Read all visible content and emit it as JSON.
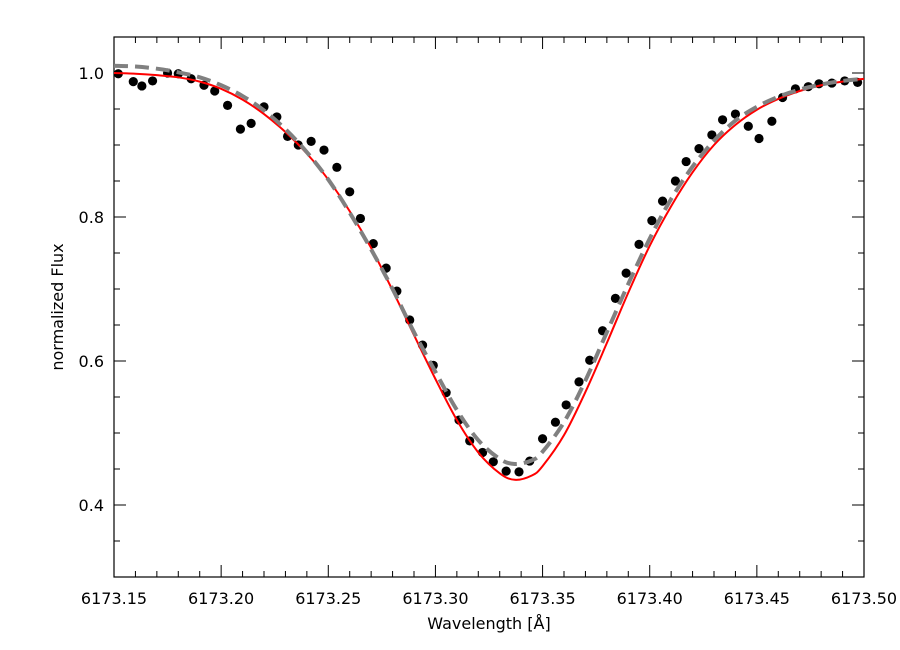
{
  "chart_data": {
    "type": "scatter",
    "title": "",
    "xlabel": "Wavelength [Å]",
    "ylabel": "normalized Flux",
    "xlim": [
      6173.15,
      6173.5
    ],
    "ylim": [
      0.3,
      1.05
    ],
    "xticks": [
      6173.15,
      6173.2,
      6173.25,
      6173.3,
      6173.35,
      6173.4,
      6173.45,
      6173.5
    ],
    "xtick_labels": [
      "6173.15",
      "6173.20",
      "6173.25",
      "6173.30",
      "6173.35",
      "6173.40",
      "6173.45",
      "6173.50"
    ],
    "yticks": [
      0.4,
      0.6,
      0.8,
      1.0
    ],
    "ytick_labels": [
      "0.4",
      "0.6",
      "0.8",
      "1.0"
    ],
    "grid": false,
    "legend": "none",
    "series": [
      {
        "kind": "scatter",
        "color": "#000000",
        "x": [
          6173.152,
          6173.159,
          6173.163,
          6173.168,
          6173.175,
          6173.18,
          6173.186,
          6173.192,
          6173.197,
          6173.203,
          6173.209,
          6173.214,
          6173.22,
          6173.226,
          6173.231,
          6173.236,
          6173.242,
          6173.248,
          6173.254,
          6173.26,
          6173.265,
          6173.271,
          6173.277,
          6173.282,
          6173.288,
          6173.294,
          6173.299,
          6173.305,
          6173.311,
          6173.316,
          6173.322,
          6173.327,
          6173.333,
          6173.339,
          6173.344,
          6173.35,
          6173.356,
          6173.361,
          6173.367,
          6173.372,
          6173.378,
          6173.384,
          6173.389,
          6173.395,
          6173.401,
          6173.406,
          6173.412,
          6173.417,
          6173.423,
          6173.429,
          6173.434,
          6173.44,
          6173.446,
          6173.451,
          6173.457,
          6173.462,
          6173.468,
          6173.474,
          6173.479,
          6173.485,
          6173.491,
          6173.497
        ],
        "y": [
          0.999,
          0.988,
          0.982,
          0.989,
          1.0,
          0.999,
          0.992,
          0.983,
          0.975,
          0.955,
          0.922,
          0.93,
          0.953,
          0.939,
          0.912,
          0.9,
          0.905,
          0.893,
          0.869,
          0.835,
          0.798,
          0.763,
          0.729,
          0.697,
          0.657,
          0.622,
          0.594,
          0.556,
          0.518,
          0.489,
          0.473,
          0.46,
          0.447,
          0.446,
          0.461,
          0.492,
          0.515,
          0.539,
          0.571,
          0.601,
          0.642,
          0.687,
          0.722,
          0.762,
          0.795,
          0.822,
          0.85,
          0.877,
          0.895,
          0.914,
          0.935,
          0.943,
          0.926,
          0.909,
          0.933,
          0.966,
          0.978,
          0.981,
          0.985,
          0.986,
          0.989,
          0.987
        ]
      },
      {
        "kind": "line",
        "color": "#ff0000",
        "style": "solid",
        "x": [
          6173.15,
          6173.16,
          6173.17,
          6173.18,
          6173.19,
          6173.2,
          6173.21,
          6173.22,
          6173.23,
          6173.24,
          6173.25,
          6173.26,
          6173.27,
          6173.28,
          6173.29,
          6173.3,
          6173.31,
          6173.32,
          6173.33,
          6173.337,
          6173.345,
          6173.35,
          6173.36,
          6173.37,
          6173.38,
          6173.39,
          6173.4,
          6173.41,
          6173.42,
          6173.43,
          6173.44,
          6173.45,
          6173.46,
          6173.47,
          6173.48,
          6173.49,
          6173.5
        ],
        "y": [
          1.0,
          0.999,
          0.997,
          0.994,
          0.988,
          0.978,
          0.963,
          0.943,
          0.918,
          0.888,
          0.852,
          0.808,
          0.757,
          0.698,
          0.636,
          0.575,
          0.518,
          0.473,
          0.444,
          0.435,
          0.441,
          0.454,
          0.497,
          0.557,
          0.625,
          0.695,
          0.76,
          0.815,
          0.862,
          0.9,
          0.928,
          0.949,
          0.964,
          0.975,
          0.983,
          0.988,
          0.992
        ]
      },
      {
        "kind": "line",
        "color": "#808080",
        "style": "dashed",
        "x": [
          6173.15,
          6173.16,
          6173.17,
          6173.18,
          6173.19,
          6173.2,
          6173.21,
          6173.22,
          6173.23,
          6173.24,
          6173.25,
          6173.26,
          6173.27,
          6173.28,
          6173.29,
          6173.3,
          6173.31,
          6173.32,
          6173.33,
          6173.337,
          6173.345,
          6173.35,
          6173.36,
          6173.37,
          6173.38,
          6173.39,
          6173.4,
          6173.41,
          6173.42,
          6173.43,
          6173.44,
          6173.45,
          6173.46,
          6173.47,
          6173.48,
          6173.49,
          6173.5
        ],
        "y": [
          1.01,
          1.009,
          1.006,
          1.001,
          0.994,
          0.983,
          0.968,
          0.948,
          0.922,
          0.89,
          0.852,
          0.806,
          0.755,
          0.7,
          0.64,
          0.585,
          0.532,
          0.49,
          0.464,
          0.457,
          0.462,
          0.474,
          0.515,
          0.573,
          0.64,
          0.707,
          0.77,
          0.825,
          0.87,
          0.906,
          0.934,
          0.953,
          0.967,
          0.977,
          0.984,
          0.989,
          0.992
        ]
      }
    ]
  }
}
